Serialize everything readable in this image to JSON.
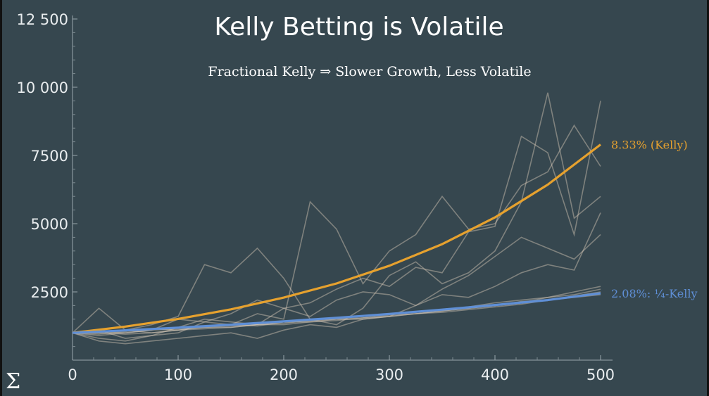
{
  "chart_data": {
    "type": "line",
    "title": "Kelly Betting is Volatile",
    "subtitle": "Fractional Kelly ⇒ Slower Growth, Less Volatile",
    "xlim": [
      0,
      500
    ],
    "ylim": [
      0,
      12500
    ],
    "x_ticks": [
      "0",
      "100",
      "200",
      "300",
      "400",
      "500"
    ],
    "y_ticks": [
      "2500",
      "5000",
      "7500",
      "10 000",
      "12 500"
    ],
    "x_tick_values": [
      0,
      100,
      200,
      300,
      400,
      500
    ],
    "y_tick_values": [
      2500,
      5000,
      7500,
      10000,
      12500
    ],
    "grid": false,
    "series": [
      {
        "name": "8.33% (Kelly)",
        "color": "#e6a12e",
        "x": [
          0,
          50,
          100,
          150,
          200,
          250,
          300,
          350,
          400,
          450,
          500
        ],
        "values": [
          1000,
          1230,
          1510,
          1860,
          2290,
          2810,
          3460,
          4250,
          5230,
          6430,
          7900
        ]
      },
      {
        "name": "2.08%: ¼-Kelly",
        "color": "#5f8fd6",
        "x": [
          0,
          50,
          100,
          150,
          200,
          250,
          300,
          350,
          400,
          450,
          500
        ],
        "values": [
          1000,
          1090,
          1190,
          1300,
          1420,
          1550,
          1690,
          1850,
          2020,
          2200,
          2450
        ]
      }
    ],
    "sample_paths": {
      "color": "#d9c9b8",
      "x": [
        0,
        25,
        50,
        75,
        100,
        125,
        150,
        175,
        200,
        225,
        250,
        275,
        300,
        325,
        350,
        375,
        400,
        425,
        450,
        475,
        500
      ],
      "paths": [
        [
          1000,
          1900,
          1100,
          1300,
          1600,
          3500,
          3200,
          4100,
          3000,
          1500,
          1300,
          1900,
          3100,
          3600,
          2800,
          3200,
          4000,
          5800,
          9800,
          5200,
          6000
        ],
        [
          1000,
          800,
          700,
          900,
          1000,
          1400,
          1300,
          1700,
          1500,
          5800,
          4800,
          2800,
          4000,
          4600,
          6000,
          4800,
          5000,
          6400,
          6900,
          8600,
          7100
        ],
        [
          1000,
          900,
          1000,
          1100,
          1500,
          1400,
          1700,
          2200,
          1900,
          2100,
          2600,
          3000,
          2700,
          3400,
          3200,
          4700,
          4900,
          8200,
          7600,
          4600,
          9500
        ],
        [
          1000,
          1100,
          800,
          900,
          1200,
          1500,
          1400,
          1300,
          1900,
          1600,
          2200,
          2500,
          2400,
          2000,
          2600,
          3100,
          3800,
          4500,
          4100,
          3700,
          4600
        ],
        [
          1000,
          700,
          600,
          700,
          800,
          900,
          1000,
          800,
          1100,
          1300,
          1200,
          1500,
          1600,
          2000,
          2400,
          2300,
          2700,
          3200,
          3500,
          3300,
          5400
        ],
        [
          1000,
          1000,
          1100,
          1000,
          1100,
          1200,
          1200,
          1300,
          1400,
          1400,
          1500,
          1500,
          1600,
          1700,
          1800,
          1900,
          2000,
          2100,
          2300,
          2400,
          2600
        ],
        [
          1000,
          1050,
          1000,
          1100,
          1150,
          1200,
          1250,
          1300,
          1350,
          1450,
          1500,
          1550,
          1650,
          1700,
          1800,
          1900,
          2000,
          2150,
          2200,
          2350,
          2500
        ],
        [
          1000,
          950,
          1050,
          1150,
          1100,
          1250,
          1300,
          1250,
          1400,
          1450,
          1550,
          1600,
          1700,
          1750,
          1850,
          1950,
          2100,
          2200,
          2300,
          2500,
          2700
        ],
        [
          1000,
          1000,
          950,
          1000,
          1100,
          1150,
          1200,
          1300,
          1300,
          1400,
          1450,
          1550,
          1600,
          1700,
          1750,
          1850,
          1950,
          2050,
          2200,
          2300,
          2400
        ]
      ]
    }
  },
  "logo_symbol": "Σ"
}
